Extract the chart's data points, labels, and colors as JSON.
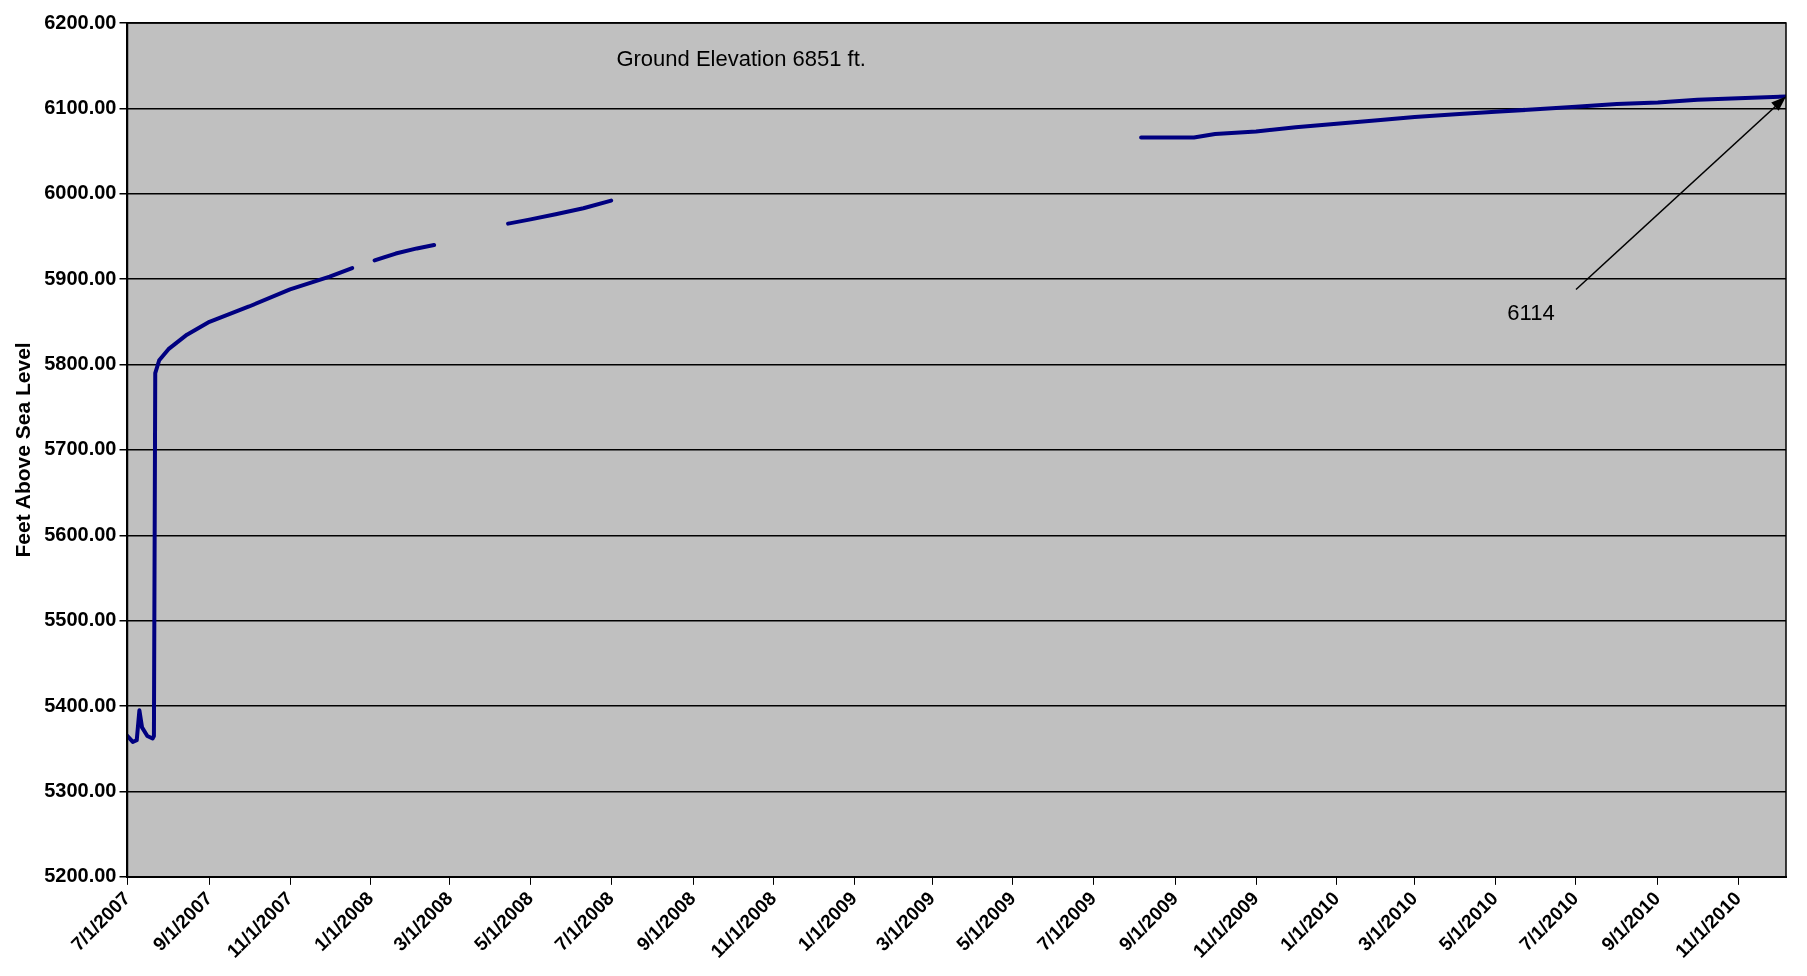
{
  "chart_data": {
    "type": "line",
    "ylabel": "Feet Above Sea Level",
    "annotations": [
      "Ground Elevation 6851 ft.",
      {
        "text": "6114",
        "x": "2010-12-07",
        "y": 6114
      }
    ],
    "x": [
      "2007-07-01",
      "2007-07-05",
      "2007-07-08",
      "2007-07-10",
      "2007-07-12",
      "2007-07-16",
      "2007-07-20",
      "2007-07-21",
      "2007-07-22",
      "2007-07-25",
      "2007-08-01",
      "2007-08-15",
      "2007-09-01",
      "2007-10-01",
      "2007-11-01",
      "2007-12-01",
      "2007-12-18",
      "2007-12-27",
      "2008-01-04",
      "2008-01-20",
      "2008-02-05",
      "2008-02-18",
      "2008-03-15",
      "2008-04-14",
      "2008-05-01",
      "2008-05-20",
      "2008-06-10",
      "2008-07-01",
      "2009-01-01",
      "2009-08-06",
      "2009-09-15",
      "2009-10-01",
      "2009-11-01",
      "2009-12-01",
      "2010-01-01",
      "2010-02-01",
      "2010-03-01",
      "2010-04-01",
      "2010-05-01",
      "2010-06-01",
      "2010-07-01",
      "2010-08-01",
      "2010-09-01",
      "2010-10-01",
      "2010-11-01",
      "2010-12-07"
    ],
    "series": [
      {
        "color": "#000080",
        "values": [
          5365,
          5358,
          5360,
          5395,
          5375,
          5365,
          5362,
          5365,
          5790,
          5805,
          5818,
          5835,
          5850,
          5868,
          5888,
          5903,
          5913,
          null,
          5922,
          5930,
          5936,
          5940,
          null,
          5965,
          5970,
          5976,
          5983,
          5992,
          null,
          6066,
          6066,
          6070,
          6073,
          6078,
          6082,
          6086,
          6090,
          6093,
          6096,
          6099,
          6102,
          6105,
          6107,
          6110,
          6112,
          6114
        ]
      }
    ],
    "xlim": [
      "2007-07-01",
      "2010-12-07"
    ],
    "xticks": [
      {
        "value": "2007-07-01",
        "label": "7/1/2007"
      },
      {
        "value": "2007-09-01",
        "label": "9/1/2007"
      },
      {
        "value": "2007-11-01",
        "label": "11/1/2007"
      },
      {
        "value": "2008-01-01",
        "label": "1/1/2008"
      },
      {
        "value": "2008-03-01",
        "label": "3/1/2008"
      },
      {
        "value": "2008-05-01",
        "label": "5/1/2008"
      },
      {
        "value": "2008-07-01",
        "label": "7/1/2008"
      },
      {
        "value": "2008-09-01",
        "label": "9/1/2008"
      },
      {
        "value": "2008-11-01",
        "label": "11/1/2008"
      },
      {
        "value": "2009-01-01",
        "label": "1/1/2009"
      },
      {
        "value": "2009-03-01",
        "label": "3/1/2009"
      },
      {
        "value": "2009-05-01",
        "label": "5/1/2009"
      },
      {
        "value": "2009-07-01",
        "label": "7/1/2009"
      },
      {
        "value": "2009-09-01",
        "label": "9/1/2009"
      },
      {
        "value": "2009-11-01",
        "label": "11/1/2009"
      },
      {
        "value": "2010-01-01",
        "label": "1/1/2010"
      },
      {
        "value": "2010-03-01",
        "label": "3/1/2010"
      },
      {
        "value": "2010-05-01",
        "label": "5/1/2010"
      },
      {
        "value": "2010-07-01",
        "label": "7/1/2010"
      },
      {
        "value": "2010-09-01",
        "label": "9/1/2010"
      },
      {
        "value": "2010-11-01",
        "label": "11/1/2010"
      }
    ],
    "ylim": [
      5200,
      6200
    ],
    "yticks": [
      {
        "value": 5200,
        "label": "5200.00"
      },
      {
        "value": 5300,
        "label": "5300.00"
      },
      {
        "value": 5400,
        "label": "5400.00"
      },
      {
        "value": 5500,
        "label": "5500.00"
      },
      {
        "value": 5600,
        "label": "5600.00"
      },
      {
        "value": 5700,
        "label": "5700.00"
      },
      {
        "value": 5800,
        "label": "5800.00"
      },
      {
        "value": 5900,
        "label": "5900.00"
      },
      {
        "value": 6000,
        "label": "6000.00"
      },
      {
        "value": 6100,
        "label": "6100.00"
      },
      {
        "value": 6200,
        "label": "6200.00"
      }
    ],
    "grid": "y",
    "legend": false,
    "marker": "none",
    "line_style": "solid"
  }
}
